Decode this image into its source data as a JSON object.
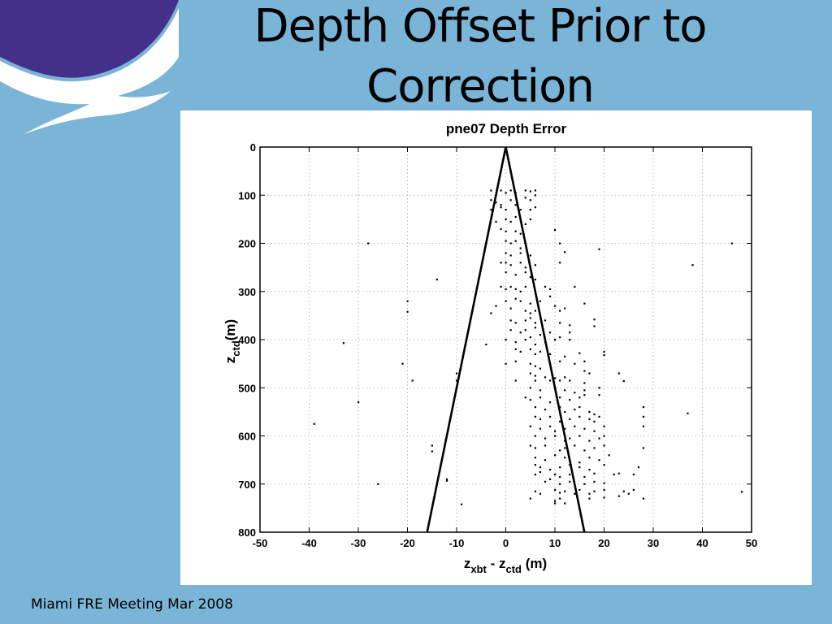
{
  "slide": {
    "title_line1": "Depth Offset Prior to",
    "title_line2": "Correction",
    "footer": "Miami FRE Meeting Mar 2008"
  },
  "colors": {
    "slide_background": "#7ab4d6",
    "logo_purple": "#443088",
    "logo_white": "#ffffff"
  },
  "icons": [
    "logo-wave-icon"
  ],
  "chart_data": {
    "type": "scatter",
    "title": "pne07 Depth Error",
    "xlabel_main": "z",
    "xlabel_sub1": "xbt",
    "xlabel_mid": " - z",
    "xlabel_sub2": "ctd",
    "xlabel_unit": " (m)",
    "ylabel_main": "z",
    "ylabel_sub": "ctd",
    "ylabel_unit": "(m)",
    "xlim": [
      -50,
      50
    ],
    "ylim": [
      800,
      0
    ],
    "x_ticks": [
      -50,
      -40,
      -30,
      -20,
      -10,
      0,
      10,
      20,
      30,
      40,
      50
    ],
    "y_ticks": [
      0,
      100,
      200,
      300,
      400,
      500,
      600,
      700,
      800
    ],
    "grid": true,
    "lines": [
      {
        "name": "",
        "x": [
          0,
          -16
        ],
        "y": [
          0,
          800
        ]
      },
      {
        "name": "",
        "x": [
          0,
          16
        ],
        "y": [
          0,
          800
        ]
      }
    ],
    "points": [
      [
        -3,
        90
      ],
      [
        -2,
        100
      ],
      [
        -1,
        90
      ],
      [
        0,
        95
      ],
      [
        1,
        90
      ],
      [
        2,
        95
      ],
      [
        4,
        90
      ],
      [
        5,
        92
      ],
      [
        6,
        90
      ],
      [
        -3,
        110
      ],
      [
        -2,
        115
      ],
      [
        -1,
        120
      ],
      [
        1,
        110
      ],
      [
        2,
        120
      ],
      [
        4,
        105
      ],
      [
        5,
        110
      ],
      [
        6,
        100
      ],
      [
        -3,
        130
      ],
      [
        -1,
        125
      ],
      [
        0,
        130
      ],
      [
        3,
        130
      ],
      [
        5,
        130
      ],
      [
        6,
        125
      ],
      [
        0,
        150
      ],
      [
        1,
        155
      ],
      [
        2,
        145
      ],
      [
        -2,
        155
      ],
      [
        5,
        150
      ],
      [
        4,
        160
      ],
      [
        -1,
        170
      ],
      [
        0,
        175
      ],
      [
        2,
        175
      ],
      [
        3,
        180
      ],
      [
        10,
        172
      ],
      [
        0,
        195
      ],
      [
        1,
        200
      ],
      [
        2,
        195
      ],
      [
        3,
        210
      ],
      [
        4,
        200
      ],
      [
        11,
        200
      ],
      [
        0,
        220
      ],
      [
        1,
        225
      ],
      [
        3,
        220
      ],
      [
        5,
        225
      ],
      [
        12,
        218
      ],
      [
        -1,
        240
      ],
      [
        0,
        240
      ],
      [
        1,
        245
      ],
      [
        3,
        240
      ],
      [
        4,
        250
      ],
      [
        6,
        245
      ],
      [
        11,
        240
      ],
      [
        0,
        260
      ],
      [
        2,
        265
      ],
      [
        4,
        260
      ],
      [
        5,
        270
      ],
      [
        6,
        275
      ],
      [
        -1,
        290
      ],
      [
        0,
        295
      ],
      [
        1,
        290
      ],
      [
        2,
        295
      ],
      [
        3,
        300
      ],
      [
        4,
        290
      ],
      [
        8,
        290
      ],
      [
        9,
        295
      ],
      [
        14,
        290
      ],
      [
        0,
        320
      ],
      [
        2,
        315
      ],
      [
        3,
        320
      ],
      [
        5,
        325
      ],
      [
        7,
        320
      ],
      [
        9,
        310
      ],
      [
        -2,
        330
      ],
      [
        1,
        335
      ],
      [
        4,
        340
      ],
      [
        5,
        345
      ],
      [
        6,
        340
      ],
      [
        10,
        330
      ],
      [
        11,
        340
      ],
      [
        12,
        335
      ],
      [
        16,
        325
      ],
      [
        -3,
        345
      ],
      [
        1,
        360
      ],
      [
        2,
        365
      ],
      [
        4,
        360
      ],
      [
        5,
        355
      ],
      [
        6,
        365
      ],
      [
        8,
        360
      ],
      [
        11,
        365
      ],
      [
        13,
        370
      ],
      [
        18,
        358
      ],
      [
        1,
        380
      ],
      [
        3,
        385
      ],
      [
        4,
        380
      ],
      [
        6,
        375
      ],
      [
        7,
        390
      ],
      [
        9,
        385
      ],
      [
        11,
        395
      ],
      [
        13,
        385
      ],
      [
        18,
        372
      ],
      [
        0,
        400
      ],
      [
        2,
        405
      ],
      [
        4,
        400
      ],
      [
        5,
        395
      ],
      [
        6,
        410
      ],
      [
        8,
        405
      ],
      [
        10,
        400
      ],
      [
        13,
        400
      ],
      [
        2,
        420
      ],
      [
        3,
        425
      ],
      [
        5,
        420
      ],
      [
        6,
        430
      ],
      [
        7,
        425
      ],
      [
        9,
        430
      ],
      [
        12,
        435
      ],
      [
        15,
        428
      ],
      [
        20,
        425
      ],
      [
        20,
        432
      ],
      [
        0,
        450
      ],
      [
        2,
        445
      ],
      [
        5,
        450
      ],
      [
        6,
        455
      ],
      [
        7,
        460
      ],
      [
        9,
        450
      ],
      [
        11,
        445
      ],
      [
        14,
        450
      ],
      [
        16,
        445
      ],
      [
        5,
        470
      ],
      [
        6,
        475
      ],
      [
        8,
        478
      ],
      [
        10,
        480
      ],
      [
        11,
        485
      ],
      [
        12,
        478
      ],
      [
        16,
        465
      ],
      [
        17,
        470
      ],
      [
        23,
        470
      ],
      [
        2,
        485
      ],
      [
        6,
        485
      ],
      [
        9,
        485
      ],
      [
        10,
        480
      ],
      [
        13,
        485
      ],
      [
        16,
        490
      ],
      [
        24,
        486
      ],
      [
        5,
        500
      ],
      [
        7,
        505
      ],
      [
        10,
        500
      ],
      [
        12,
        505
      ],
      [
        14,
        510
      ],
      [
        16,
        505
      ],
      [
        19,
        500
      ],
      [
        4,
        520
      ],
      [
        5,
        525
      ],
      [
        7,
        520
      ],
      [
        9,
        530
      ],
      [
        11,
        520
      ],
      [
        13,
        525
      ],
      [
        15,
        520
      ],
      [
        16,
        515
      ],
      [
        19,
        515
      ],
      [
        28,
        540
      ],
      [
        6,
        540
      ],
      [
        8,
        545
      ],
      [
        11,
        540
      ],
      [
        12,
        550
      ],
      [
        14,
        545
      ],
      [
        15,
        540
      ],
      [
        17,
        550
      ],
      [
        18,
        555
      ],
      [
        6,
        560
      ],
      [
        7,
        565
      ],
      [
        9,
        560
      ],
      [
        11,
        570
      ],
      [
        13,
        565
      ],
      [
        15,
        560
      ],
      [
        17,
        565
      ],
      [
        18,
        570
      ],
      [
        19,
        560
      ],
      [
        28,
        560
      ],
      [
        5,
        580
      ],
      [
        7,
        585
      ],
      [
        9,
        580
      ],
      [
        10,
        590
      ],
      [
        12,
        585
      ],
      [
        14,
        580
      ],
      [
        16,
        585
      ],
      [
        18,
        590
      ],
      [
        20,
        580
      ],
      [
        28,
        580
      ],
      [
        6,
        600
      ],
      [
        8,
        605
      ],
      [
        10,
        600
      ],
      [
        12,
        610
      ],
      [
        13,
        605
      ],
      [
        15,
        600
      ],
      [
        17,
        610
      ],
      [
        19,
        605
      ],
      [
        20,
        600
      ],
      [
        5,
        620
      ],
      [
        6,
        625
      ],
      [
        8,
        620
      ],
      [
        11,
        630
      ],
      [
        12,
        625
      ],
      [
        14,
        620
      ],
      [
        16,
        630
      ],
      [
        18,
        625
      ],
      [
        20,
        620
      ],
      [
        28,
        625
      ],
      [
        6,
        645
      ],
      [
        8,
        650
      ],
      [
        10,
        640
      ],
      [
        12,
        645
      ],
      [
        13,
        650
      ],
      [
        15,
        655
      ],
      [
        17,
        645
      ],
      [
        19,
        650
      ],
      [
        21,
        640
      ],
      [
        6,
        660
      ],
      [
        7,
        665
      ],
      [
        9,
        670
      ],
      [
        11,
        665
      ],
      [
        13,
        660
      ],
      [
        15,
        665
      ],
      [
        17,
        670
      ],
      [
        20,
        660
      ],
      [
        27,
        665
      ],
      [
        6,
        680
      ],
      [
        7,
        675
      ],
      [
        10,
        680
      ],
      [
        11,
        685
      ],
      [
        13,
        680
      ],
      [
        16,
        685
      ],
      [
        18,
        678
      ],
      [
        22,
        680
      ],
      [
        23,
        678
      ],
      [
        26,
        680
      ],
      [
        8,
        695
      ],
      [
        9,
        690
      ],
      [
        11,
        700
      ],
      [
        13,
        695
      ],
      [
        16,
        700
      ],
      [
        18,
        695
      ],
      [
        20,
        698
      ],
      [
        6,
        715
      ],
      [
        7,
        720
      ],
      [
        10,
        712
      ],
      [
        11,
        718
      ],
      [
        12,
        715
      ],
      [
        14,
        720
      ],
      [
        15,
        712
      ],
      [
        17,
        720
      ],
      [
        18,
        715
      ],
      [
        20,
        712
      ],
      [
        24,
        715
      ],
      [
        25,
        720
      ],
      [
        26,
        712
      ],
      [
        28,
        730
      ],
      [
        5,
        730
      ],
      [
        10,
        735
      ],
      [
        11,
        730
      ],
      [
        12,
        740
      ],
      [
        17,
        730
      ],
      [
        20,
        728
      ],
      [
        23,
        725
      ],
      [
        10,
        740
      ],
      [
        -9,
        742
      ],
      [
        -12,
        690
      ],
      [
        -12,
        693
      ],
      [
        -15,
        620
      ],
      [
        -15,
        632
      ],
      [
        -26,
        700
      ],
      [
        -30,
        530
      ],
      [
        -39,
        575
      ],
      [
        -33,
        407
      ],
      [
        -21,
        450
      ],
      [
        -19,
        485
      ],
      [
        -20,
        320
      ],
      [
        -20,
        342
      ],
      [
        -10,
        470
      ],
      [
        -10,
        485
      ],
      [
        -14,
        275
      ],
      [
        -28,
        200
      ],
      [
        19,
        212
      ],
      [
        38,
        245
      ],
      [
        46,
        200
      ],
      [
        37,
        553
      ],
      [
        48,
        716
      ],
      [
        -4,
        410
      ]
    ]
  }
}
